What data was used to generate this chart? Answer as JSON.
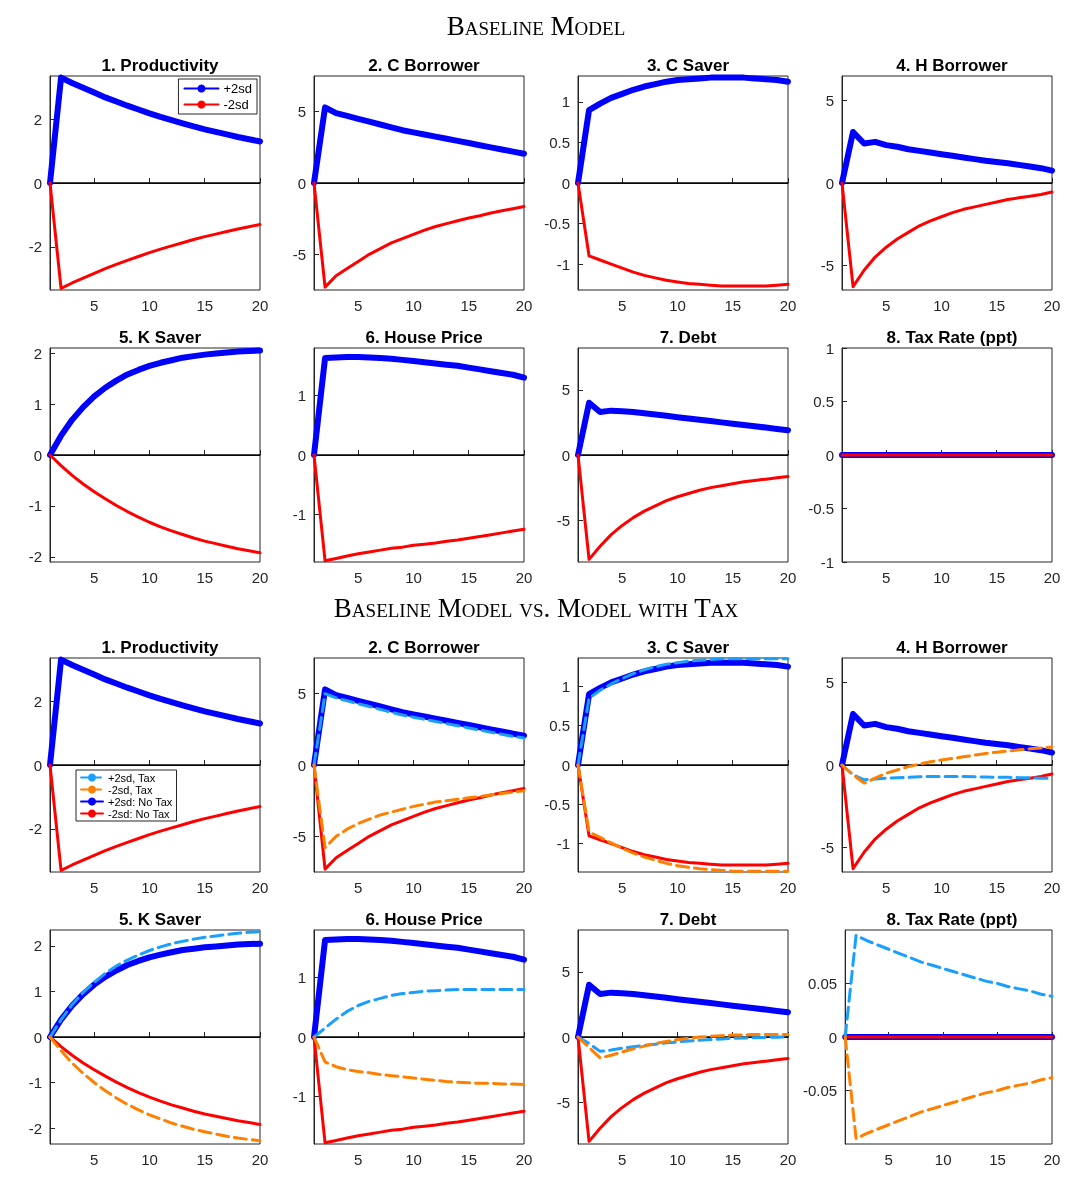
{
  "chart_data": [
    {
      "type": "line",
      "title": "1. Productivity",
      "annotations": [
        "Baseline Model"
      ],
      "x": [
        1,
        2,
        3,
        4,
        5,
        6,
        7,
        8,
        9,
        10,
        11,
        12,
        13,
        14,
        15,
        16,
        17,
        18,
        19,
        20
      ],
      "xlim": [
        1,
        20
      ],
      "xticks": [
        5,
        10,
        15,
        20
      ],
      "ylim": [
        -3.35,
        3.35
      ],
      "yticks": [
        -2,
        0,
        2
      ],
      "ref_lines": [
        {
          "axis": "y",
          "value": 0,
          "color": "#000000"
        }
      ],
      "legend": "top right",
      "series": [
        {
          "name": "+2sd",
          "color": "#0000ff",
          "values": [
            0,
            3.3,
            3.13,
            2.98,
            2.83,
            2.68,
            2.55,
            2.42,
            2.3,
            2.18,
            2.07,
            1.97,
            1.87,
            1.77,
            1.68,
            1.6,
            1.52,
            1.44,
            1.37,
            1.3
          ]
        },
        {
          "name": "-2sd",
          "color": "#ff0000",
          "values": [
            0,
            -3.3,
            -3.13,
            -2.98,
            -2.83,
            -2.68,
            -2.55,
            -2.42,
            -2.3,
            -2.18,
            -2.07,
            -1.97,
            -1.87,
            -1.77,
            -1.68,
            -1.6,
            -1.52,
            -1.44,
            -1.37,
            -1.3
          ]
        }
      ]
    },
    {
      "type": "line",
      "title": "2. C Borrower",
      "x": [
        1,
        2,
        3,
        4,
        5,
        6,
        7,
        8,
        9,
        10,
        11,
        12,
        13,
        14,
        15,
        16,
        17,
        18,
        19,
        20
      ],
      "xlim": [
        1,
        20
      ],
      "xticks": [
        5,
        10,
        15,
        20
      ],
      "ylim": [
        -7.5,
        7.5
      ],
      "yticks": [
        -5,
        0,
        5
      ],
      "ref_lines": [
        {
          "axis": "y",
          "value": 0,
          "color": "#000000"
        }
      ],
      "series": [
        {
          "color": "#0000ff",
          "values": [
            0,
            5.3,
            4.9,
            4.7,
            4.5,
            4.3,
            4.1,
            3.9,
            3.7,
            3.55,
            3.4,
            3.25,
            3.1,
            2.95,
            2.8,
            2.65,
            2.5,
            2.35,
            2.2,
            2.05
          ]
        },
        {
          "color": "#ff0000",
          "values": [
            0,
            -7.3,
            -6.5,
            -6.0,
            -5.5,
            -5.0,
            -4.6,
            -4.2,
            -3.9,
            -3.6,
            -3.3,
            -3.05,
            -2.85,
            -2.65,
            -2.45,
            -2.3,
            -2.1,
            -1.95,
            -1.8,
            -1.65
          ]
        }
      ]
    },
    {
      "type": "line",
      "title": "3. C Saver",
      "x": [
        1,
        2,
        3,
        4,
        5,
        6,
        7,
        8,
        9,
        10,
        11,
        12,
        13,
        14,
        15,
        16,
        17,
        18,
        19,
        20
      ],
      "xlim": [
        1,
        20
      ],
      "xticks": [
        5,
        10,
        15,
        20
      ],
      "ylim": [
        -1.32,
        1.32
      ],
      "yticks": [
        -1,
        -0.5,
        0,
        0.5,
        1
      ],
      "ref_lines": [
        {
          "axis": "y",
          "value": 0,
          "color": "#000000"
        }
      ],
      "series": [
        {
          "color": "#0000ff",
          "values": [
            0,
            0.9,
            0.98,
            1.05,
            1.1,
            1.15,
            1.19,
            1.22,
            1.25,
            1.27,
            1.28,
            1.29,
            1.3,
            1.3,
            1.3,
            1.3,
            1.29,
            1.28,
            1.27,
            1.25
          ]
        },
        {
          "color": "#ff0000",
          "values": [
            0,
            -0.9,
            -0.95,
            -1.0,
            -1.05,
            -1.1,
            -1.14,
            -1.17,
            -1.2,
            -1.22,
            -1.24,
            -1.25,
            -1.26,
            -1.27,
            -1.27,
            -1.27,
            -1.27,
            -1.27,
            -1.26,
            -1.25
          ]
        }
      ]
    },
    {
      "type": "line",
      "title": "4. H Borrower",
      "x": [
        1,
        2,
        3,
        4,
        5,
        6,
        7,
        8,
        9,
        10,
        11,
        12,
        13,
        14,
        15,
        16,
        17,
        18,
        19,
        20
      ],
      "xlim": [
        1,
        20
      ],
      "xticks": [
        5,
        10,
        15,
        20
      ],
      "ylim": [
        -6.5,
        6.5
      ],
      "yticks": [
        -5,
        0,
        5
      ],
      "ref_lines": [
        {
          "axis": "y",
          "value": 0,
          "color": "#000000"
        }
      ],
      "series": [
        {
          "color": "#0000ff",
          "values": [
            0,
            3.1,
            2.4,
            2.5,
            2.3,
            2.2,
            2.05,
            1.95,
            1.85,
            1.75,
            1.65,
            1.55,
            1.45,
            1.35,
            1.27,
            1.2,
            1.1,
            1.0,
            0.9,
            0.75
          ]
        },
        {
          "color": "#ff0000",
          "values": [
            0,
            -6.3,
            -5.3,
            -4.5,
            -3.9,
            -3.4,
            -3.0,
            -2.6,
            -2.3,
            -2.05,
            -1.8,
            -1.6,
            -1.45,
            -1.3,
            -1.15,
            -1.0,
            -0.9,
            -0.8,
            -0.7,
            -0.55
          ]
        }
      ]
    },
    {
      "type": "line",
      "title": "5. K Saver",
      "x": [
        1,
        2,
        3,
        4,
        5,
        6,
        7,
        8,
        9,
        10,
        11,
        12,
        13,
        14,
        15,
        16,
        17,
        18,
        19,
        20
      ],
      "xlim": [
        1,
        20
      ],
      "xticks": [
        5,
        10,
        15,
        20
      ],
      "ylim": [
        -2.1,
        2.1
      ],
      "yticks": [
        -2,
        -1,
        0,
        1,
        2
      ],
      "ref_lines": [
        {
          "axis": "y",
          "value": 0,
          "color": "#000000"
        }
      ],
      "series": [
        {
          "color": "#0000ff",
          "values": [
            0,
            0.38,
            0.69,
            0.94,
            1.15,
            1.32,
            1.46,
            1.58,
            1.67,
            1.75,
            1.81,
            1.86,
            1.91,
            1.94,
            1.97,
            1.99,
            2.01,
            2.03,
            2.04,
            2.05
          ]
        },
        {
          "color": "#ff0000",
          "values": [
            0,
            -0.21,
            -0.4,
            -0.57,
            -0.72,
            -0.86,
            -0.99,
            -1.11,
            -1.22,
            -1.32,
            -1.41,
            -1.49,
            -1.56,
            -1.63,
            -1.69,
            -1.74,
            -1.79,
            -1.84,
            -1.88,
            -1.92
          ]
        }
      ]
    },
    {
      "type": "line",
      "title": "6. House Price",
      "x": [
        1,
        2,
        3,
        4,
        5,
        6,
        7,
        8,
        9,
        10,
        11,
        12,
        13,
        14,
        15,
        16,
        17,
        18,
        19,
        20
      ],
      "xlim": [
        1,
        20
      ],
      "xticks": [
        5,
        10,
        15,
        20
      ],
      "ylim": [
        -1.8,
        1.8
      ],
      "yticks": [
        -1,
        0,
        1
      ],
      "ref_lines": [
        {
          "axis": "y",
          "value": 0,
          "color": "#000000"
        }
      ],
      "series": [
        {
          "color": "#0000ff",
          "values": [
            0,
            1.63,
            1.64,
            1.65,
            1.65,
            1.64,
            1.63,
            1.62,
            1.6,
            1.58,
            1.56,
            1.54,
            1.52,
            1.5,
            1.47,
            1.44,
            1.41,
            1.38,
            1.35,
            1.3
          ]
        },
        {
          "color": "#ff0000",
          "values": [
            0,
            -1.78,
            -1.74,
            -1.7,
            -1.66,
            -1.63,
            -1.6,
            -1.57,
            -1.55,
            -1.52,
            -1.5,
            -1.48,
            -1.45,
            -1.43,
            -1.4,
            -1.37,
            -1.34,
            -1.31,
            -1.28,
            -1.25
          ]
        }
      ]
    },
    {
      "type": "line",
      "title": "7. Debt",
      "x": [
        1,
        2,
        3,
        4,
        5,
        6,
        7,
        8,
        9,
        10,
        11,
        12,
        13,
        14,
        15,
        16,
        17,
        18,
        19,
        20
      ],
      "xlim": [
        1,
        20
      ],
      "xticks": [
        5,
        10,
        15,
        20
      ],
      "ylim": [
        -8.2,
        8.2
      ],
      "yticks": [
        -5,
        0,
        5
      ],
      "ref_lines": [
        {
          "axis": "y",
          "value": 0,
          "color": "#000000"
        }
      ],
      "series": [
        {
          "color": "#0000ff",
          "values": [
            0,
            4.0,
            3.3,
            3.4,
            3.35,
            3.3,
            3.2,
            3.1,
            3.0,
            2.9,
            2.8,
            2.7,
            2.6,
            2.5,
            2.4,
            2.3,
            2.2,
            2.1,
            2.0,
            1.9
          ]
        },
        {
          "color": "#ff0000",
          "values": [
            0,
            -8.0,
            -7.0,
            -6.1,
            -5.4,
            -4.8,
            -4.3,
            -3.9,
            -3.5,
            -3.2,
            -2.95,
            -2.7,
            -2.5,
            -2.35,
            -2.2,
            -2.05,
            -1.95,
            -1.85,
            -1.75,
            -1.65
          ]
        }
      ]
    },
    {
      "type": "line",
      "title": "8. Tax Rate (ppt)",
      "x": [
        1,
        2,
        3,
        4,
        5,
        6,
        7,
        8,
        9,
        10,
        11,
        12,
        13,
        14,
        15,
        16,
        17,
        18,
        19,
        20
      ],
      "xlim": [
        1,
        20
      ],
      "xticks": [
        5,
        10,
        15,
        20
      ],
      "ylim": [
        -1,
        1
      ],
      "yticks": [
        -1,
        -0.5,
        0,
        0.5,
        1
      ],
      "series": [
        {
          "color": "#0000ff",
          "values": [
            0,
            0,
            0,
            0,
            0,
            0,
            0,
            0,
            0,
            0,
            0,
            0,
            0,
            0,
            0,
            0,
            0,
            0,
            0,
            0
          ]
        },
        {
          "color": "#ff0000",
          "values": [
            0,
            0,
            0,
            0,
            0,
            0,
            0,
            0,
            0,
            0,
            0,
            0,
            0,
            0,
            0,
            0,
            0,
            0,
            0,
            0
          ]
        }
      ]
    },
    {
      "type": "line",
      "title": "1. Productivity",
      "annotations": [
        "Baseline Model vs. Model with Tax"
      ],
      "x": [
        1,
        2,
        3,
        4,
        5,
        6,
        7,
        8,
        9,
        10,
        11,
        12,
        13,
        14,
        15,
        16,
        17,
        18,
        19,
        20
      ],
      "xlim": [
        1,
        20
      ],
      "xticks": [
        5,
        10,
        15,
        20
      ],
      "ylim": [
        -3.35,
        3.35
      ],
      "yticks": [
        -2,
        0,
        2
      ],
      "ref_lines": [
        {
          "axis": "y",
          "value": 0,
          "color": "#000000"
        }
      ],
      "legend": "left",
      "series": [
        {
          "name": "+2sd, Tax",
          "color": "#1a9fff",
          "line_style": "dashed",
          "values": [
            null,
            null,
            null,
            null,
            null,
            null,
            null,
            null,
            null,
            null,
            null,
            null,
            null,
            null,
            null,
            null,
            null,
            null,
            null,
            null
          ]
        },
        {
          "name": "-2sd, Tax",
          "color": "#ff8000",
          "line_style": "dashed",
          "values": [
            null,
            null,
            null,
            null,
            null,
            null,
            null,
            null,
            null,
            null,
            null,
            null,
            null,
            null,
            null,
            null,
            null,
            null,
            null,
            null
          ]
        },
        {
          "name": "+2sd: No Tax",
          "color": "#0000ff",
          "values": [
            0,
            3.3,
            3.13,
            2.98,
            2.83,
            2.68,
            2.55,
            2.42,
            2.3,
            2.18,
            2.07,
            1.97,
            1.87,
            1.77,
            1.68,
            1.6,
            1.52,
            1.44,
            1.37,
            1.3
          ]
        },
        {
          "name": "-2sd: No Tax",
          "color": "#ff0000",
          "values": [
            0,
            -3.3,
            -3.13,
            -2.98,
            -2.83,
            -2.68,
            -2.55,
            -2.42,
            -2.3,
            -2.18,
            -2.07,
            -1.97,
            -1.87,
            -1.77,
            -1.68,
            -1.6,
            -1.52,
            -1.44,
            -1.37,
            -1.3
          ]
        }
      ]
    },
    {
      "type": "line",
      "title": "2. C Borrower",
      "x": [
        1,
        2,
        3,
        4,
        5,
        6,
        7,
        8,
        9,
        10,
        11,
        12,
        13,
        14,
        15,
        16,
        17,
        18,
        19,
        20
      ],
      "xlim": [
        1,
        20
      ],
      "xticks": [
        5,
        10,
        15,
        20
      ],
      "ylim": [
        -7.5,
        7.5
      ],
      "yticks": [
        -5,
        0,
        5
      ],
      "ref_lines": [
        {
          "axis": "y",
          "value": 0,
          "color": "#000000"
        }
      ],
      "series": [
        {
          "color": "#1a9fff",
          "line_style": "dashed",
          "values": [
            0,
            5.0,
            4.7,
            4.5,
            4.3,
            4.1,
            3.9,
            3.7,
            3.5,
            3.35,
            3.2,
            3.05,
            2.9,
            2.75,
            2.6,
            2.45,
            2.3,
            2.15,
            2.0,
            1.9
          ]
        },
        {
          "color": "#ff8000",
          "line_style": "dashed",
          "values": [
            0,
            -5.8,
            -5.0,
            -4.5,
            -4.1,
            -3.8,
            -3.5,
            -3.3,
            -3.1,
            -2.9,
            -2.75,
            -2.6,
            -2.5,
            -2.4,
            -2.3,
            -2.2,
            -2.1,
            -2.0,
            -1.9,
            -1.8
          ]
        },
        {
          "color": "#0000ff",
          "values": [
            0,
            5.3,
            4.9,
            4.7,
            4.5,
            4.3,
            4.1,
            3.9,
            3.7,
            3.55,
            3.4,
            3.25,
            3.1,
            2.95,
            2.8,
            2.65,
            2.5,
            2.35,
            2.2,
            2.05
          ]
        },
        {
          "color": "#ff0000",
          "values": [
            0,
            -7.3,
            -6.5,
            -6.0,
            -5.5,
            -5.0,
            -4.6,
            -4.2,
            -3.9,
            -3.6,
            -3.3,
            -3.05,
            -2.85,
            -2.65,
            -2.45,
            -2.3,
            -2.1,
            -1.95,
            -1.8,
            -1.65
          ]
        }
      ]
    },
    {
      "type": "line",
      "title": "3. C Saver",
      "x": [
        1,
        2,
        3,
        4,
        5,
        6,
        7,
        8,
        9,
        10,
        11,
        12,
        13,
        14,
        15,
        16,
        17,
        18,
        19,
        20
      ],
      "xlim": [
        1,
        20
      ],
      "xticks": [
        5,
        10,
        15,
        20
      ],
      "ylim": [
        -1.36,
        1.36
      ],
      "yticks": [
        -1,
        -0.5,
        0,
        0.5,
        1
      ],
      "ref_lines": [
        {
          "axis": "y",
          "value": 0,
          "color": "#000000"
        }
      ],
      "series": [
        {
          "color": "#1a9fff",
          "line_style": "dashed",
          "values": [
            0,
            0.85,
            0.95,
            1.03,
            1.1,
            1.16,
            1.21,
            1.25,
            1.28,
            1.3,
            1.32,
            1.33,
            1.34,
            1.35,
            1.35,
            1.35,
            1.35,
            1.35,
            1.35,
            1.35
          ]
        },
        {
          "color": "#ff8000",
          "line_style": "dashed",
          "values": [
            0,
            -0.85,
            -0.92,
            -0.99,
            -1.06,
            -1.12,
            -1.17,
            -1.21,
            -1.25,
            -1.28,
            -1.3,
            -1.32,
            -1.33,
            -1.34,
            -1.35,
            -1.35,
            -1.35,
            -1.35,
            -1.35,
            -1.35
          ]
        },
        {
          "color": "#0000ff",
          "values": [
            0,
            0.9,
            0.98,
            1.05,
            1.1,
            1.15,
            1.19,
            1.22,
            1.25,
            1.27,
            1.28,
            1.29,
            1.3,
            1.3,
            1.3,
            1.3,
            1.29,
            1.28,
            1.27,
            1.25
          ]
        },
        {
          "color": "#ff0000",
          "values": [
            0,
            -0.9,
            -0.95,
            -1.0,
            -1.05,
            -1.1,
            -1.14,
            -1.17,
            -1.2,
            -1.22,
            -1.24,
            -1.25,
            -1.26,
            -1.27,
            -1.27,
            -1.27,
            -1.27,
            -1.27,
            -1.26,
            -1.25
          ]
        }
      ]
    },
    {
      "type": "line",
      "title": "4. H Borrower",
      "x": [
        1,
        2,
        3,
        4,
        5,
        6,
        7,
        8,
        9,
        10,
        11,
        12,
        13,
        14,
        15,
        16,
        17,
        18,
        19,
        20
      ],
      "xlim": [
        1,
        20
      ],
      "xticks": [
        5,
        10,
        15,
        20
      ],
      "ylim": [
        -6.5,
        6.5
      ],
      "yticks": [
        -5,
        0,
        5
      ],
      "ref_lines": [
        {
          "axis": "y",
          "value": 0,
          "color": "#000000"
        }
      ],
      "series": [
        {
          "color": "#1a9fff",
          "line_style": "dashed",
          "values": [
            0,
            -0.6,
            -0.9,
            -0.85,
            -0.8,
            -0.78,
            -0.75,
            -0.72,
            -0.7,
            -0.7,
            -0.7,
            -0.7,
            -0.72,
            -0.73,
            -0.75,
            -0.75,
            -0.77,
            -0.78,
            -0.8,
            -0.8
          ]
        },
        {
          "color": "#ff8000",
          "line_style": "dashed",
          "values": [
            0,
            -0.6,
            -1.1,
            -0.8,
            -0.5,
            -0.3,
            -0.1,
            0.05,
            0.2,
            0.3,
            0.4,
            0.5,
            0.6,
            0.7,
            0.78,
            0.85,
            0.92,
            0.98,
            1.03,
            1.1
          ]
        },
        {
          "color": "#0000ff",
          "values": [
            0,
            3.1,
            2.4,
            2.5,
            2.3,
            2.2,
            2.05,
            1.95,
            1.85,
            1.75,
            1.65,
            1.55,
            1.45,
            1.35,
            1.27,
            1.2,
            1.1,
            1.0,
            0.9,
            0.75
          ]
        },
        {
          "color": "#ff0000",
          "values": [
            0,
            -6.3,
            -5.3,
            -4.5,
            -3.9,
            -3.4,
            -3.0,
            -2.6,
            -2.3,
            -2.05,
            -1.8,
            -1.6,
            -1.45,
            -1.3,
            -1.15,
            -1.0,
            -0.9,
            -0.8,
            -0.7,
            -0.55
          ]
        }
      ]
    },
    {
      "type": "line",
      "title": "5. K Saver",
      "x": [
        1,
        2,
        3,
        4,
        5,
        6,
        7,
        8,
        9,
        10,
        11,
        12,
        13,
        14,
        15,
        16,
        17,
        18,
        19,
        20
      ],
      "xlim": [
        1,
        20
      ],
      "xticks": [
        5,
        10,
        15,
        20
      ],
      "ylim": [
        -2.35,
        2.35
      ],
      "yticks": [
        -2,
        -1,
        0,
        1,
        2
      ],
      "ref_lines": [
        {
          "axis": "y",
          "value": 0,
          "color": "#000000"
        }
      ],
      "series": [
        {
          "color": "#1a9fff",
          "line_style": "dashed",
          "values": [
            0,
            0.38,
            0.71,
            0.98,
            1.2,
            1.4,
            1.56,
            1.69,
            1.8,
            1.9,
            1.98,
            2.05,
            2.1,
            2.15,
            2.19,
            2.22,
            2.25,
            2.28,
            2.3,
            2.31
          ]
        },
        {
          "color": "#ff8000",
          "line_style": "dashed",
          "values": [
            0,
            -0.3,
            -0.57,
            -0.8,
            -1.0,
            -1.18,
            -1.34,
            -1.48,
            -1.6,
            -1.71,
            -1.8,
            -1.89,
            -1.96,
            -2.03,
            -2.08,
            -2.13,
            -2.18,
            -2.22,
            -2.25,
            -2.28
          ]
        },
        {
          "color": "#0000ff",
          "values": [
            0,
            0.38,
            0.69,
            0.94,
            1.15,
            1.32,
            1.46,
            1.58,
            1.67,
            1.75,
            1.81,
            1.86,
            1.91,
            1.94,
            1.97,
            1.99,
            2.01,
            2.03,
            2.04,
            2.05
          ]
        },
        {
          "color": "#ff0000",
          "values": [
            0,
            -0.21,
            -0.4,
            -0.57,
            -0.72,
            -0.86,
            -0.99,
            -1.11,
            -1.22,
            -1.32,
            -1.41,
            -1.49,
            -1.56,
            -1.63,
            -1.69,
            -1.74,
            -1.79,
            -1.84,
            -1.88,
            -1.92
          ]
        }
      ]
    },
    {
      "type": "line",
      "title": "6. House Price",
      "x": [
        1,
        2,
        3,
        4,
        5,
        6,
        7,
        8,
        9,
        10,
        11,
        12,
        13,
        14,
        15,
        16,
        17,
        18,
        19,
        20
      ],
      "xlim": [
        1,
        20
      ],
      "xticks": [
        5,
        10,
        15,
        20
      ],
      "ylim": [
        -1.8,
        1.8
      ],
      "yticks": [
        -1,
        0,
        1
      ],
      "ref_lines": [
        {
          "axis": "y",
          "value": 0,
          "color": "#000000"
        }
      ],
      "series": [
        {
          "color": "#1a9fff",
          "line_style": "dashed",
          "values": [
            0,
            0.15,
            0.3,
            0.43,
            0.53,
            0.6,
            0.65,
            0.7,
            0.73,
            0.75,
            0.77,
            0.78,
            0.79,
            0.8,
            0.8,
            0.8,
            0.8,
            0.8,
            0.8,
            0.8
          ]
        },
        {
          "color": "#ff8000",
          "line_style": "dashed",
          "values": [
            0,
            -0.42,
            -0.5,
            -0.55,
            -0.58,
            -0.6,
            -0.63,
            -0.65,
            -0.67,
            -0.69,
            -0.71,
            -0.73,
            -0.75,
            -0.76,
            -0.77,
            -0.78,
            -0.78,
            -0.79,
            -0.79,
            -0.8
          ]
        },
        {
          "color": "#0000ff",
          "values": [
            0,
            1.63,
            1.64,
            1.65,
            1.65,
            1.64,
            1.63,
            1.62,
            1.6,
            1.58,
            1.56,
            1.54,
            1.52,
            1.5,
            1.47,
            1.44,
            1.41,
            1.38,
            1.35,
            1.3
          ]
        },
        {
          "color": "#ff0000",
          "values": [
            0,
            -1.78,
            -1.74,
            -1.7,
            -1.66,
            -1.63,
            -1.6,
            -1.57,
            -1.55,
            -1.52,
            -1.5,
            -1.48,
            -1.45,
            -1.43,
            -1.4,
            -1.37,
            -1.34,
            -1.31,
            -1.28,
            -1.25
          ]
        }
      ]
    },
    {
      "type": "line",
      "title": "7. Debt",
      "x": [
        1,
        2,
        3,
        4,
        5,
        6,
        7,
        8,
        9,
        10,
        11,
        12,
        13,
        14,
        15,
        16,
        17,
        18,
        19,
        20
      ],
      "xlim": [
        1,
        20
      ],
      "xticks": [
        5,
        10,
        15,
        20
      ],
      "ylim": [
        -8.2,
        8.2
      ],
      "yticks": [
        -5,
        0,
        5
      ],
      "ref_lines": [
        {
          "axis": "y",
          "value": 0,
          "color": "#000000"
        }
      ],
      "series": [
        {
          "color": "#1a9fff",
          "line_style": "dashed",
          "values": [
            0,
            -0.5,
            -1.1,
            -1.0,
            -0.85,
            -0.75,
            -0.65,
            -0.55,
            -0.45,
            -0.38,
            -0.3,
            -0.25,
            -0.2,
            -0.15,
            -0.1,
            -0.08,
            -0.05,
            -0.03,
            -0.02,
            0
          ]
        },
        {
          "color": "#ff8000",
          "line_style": "dashed",
          "values": [
            0,
            -0.8,
            -1.6,
            -1.4,
            -1.15,
            -0.9,
            -0.7,
            -0.5,
            -0.35,
            -0.2,
            -0.1,
            0,
            0.05,
            0.1,
            0.15,
            0.15,
            0.2,
            0.2,
            0.2,
            0.2
          ]
        },
        {
          "color": "#0000ff",
          "values": [
            0,
            4.0,
            3.3,
            3.4,
            3.35,
            3.3,
            3.2,
            3.1,
            3.0,
            2.9,
            2.8,
            2.7,
            2.6,
            2.5,
            2.4,
            2.3,
            2.2,
            2.1,
            2.0,
            1.9
          ]
        },
        {
          "color": "#ff0000",
          "values": [
            0,
            -8.0,
            -7.0,
            -6.1,
            -5.4,
            -4.8,
            -4.3,
            -3.9,
            -3.5,
            -3.2,
            -2.95,
            -2.7,
            -2.5,
            -2.35,
            -2.2,
            -2.05,
            -1.95,
            -1.85,
            -1.75,
            -1.65
          ]
        }
      ]
    },
    {
      "type": "line",
      "title": "8. Tax Rate (ppt)",
      "x": [
        1,
        2,
        3,
        4,
        5,
        6,
        7,
        8,
        9,
        10,
        11,
        12,
        13,
        14,
        15,
        16,
        17,
        18,
        19,
        20
      ],
      "xlim": [
        1,
        20
      ],
      "xticks": [
        5,
        10,
        15,
        20
      ],
      "ylim": [
        -0.1,
        0.1
      ],
      "yticks": [
        -0.05,
        0,
        0.05
      ],
      "series": [
        {
          "color": "#1a9fff",
          "line_style": "dashed",
          "values": [
            0,
            0.095,
            0.09,
            0.086,
            0.082,
            0.078,
            0.074,
            0.07,
            0.067,
            0.064,
            0.061,
            0.058,
            0.055,
            0.052,
            0.05,
            0.047,
            0.045,
            0.043,
            0.04,
            0.038
          ]
        },
        {
          "color": "#ff8000",
          "line_style": "dashed",
          "values": [
            0,
            -0.095,
            -0.09,
            -0.086,
            -0.082,
            -0.078,
            -0.074,
            -0.07,
            -0.067,
            -0.064,
            -0.061,
            -0.058,
            -0.055,
            -0.052,
            -0.05,
            -0.047,
            -0.045,
            -0.043,
            -0.04,
            -0.038
          ]
        },
        {
          "color": "#0000ff",
          "values": [
            0,
            0,
            0,
            0,
            0,
            0,
            0,
            0,
            0,
            0,
            0,
            0,
            0,
            0,
            0,
            0,
            0,
            0,
            0,
            0
          ]
        },
        {
          "color": "#ff0000",
          "values": [
            0,
            0,
            0,
            0,
            0,
            0,
            0,
            0,
            0,
            0,
            0,
            0,
            0,
            0,
            0,
            0,
            0,
            0,
            0,
            0
          ]
        }
      ]
    }
  ]
}
